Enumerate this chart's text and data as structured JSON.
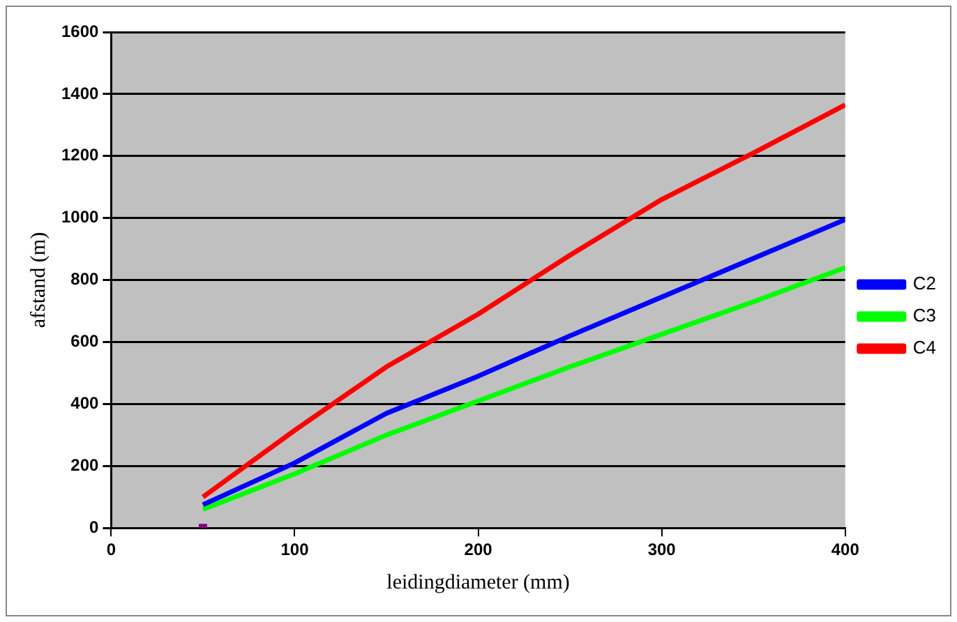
{
  "chart_data": {
    "type": "line",
    "xlabel": "leidingdiameter (mm)",
    "ylabel": "afstand (m)",
    "x": [
      50,
      100,
      150,
      200,
      250,
      300,
      350,
      400
    ],
    "series": [
      {
        "name": "C2",
        "color": "#0000ff",
        "values": [
          75,
          210,
          370,
          490,
          620,
          745,
          870,
          995
        ]
      },
      {
        "name": "C3",
        "color": "#00ff00",
        "values": [
          60,
          175,
          300,
          410,
          520,
          625,
          730,
          840
        ]
      },
      {
        "name": "C4",
        "color": "#ff0000",
        "values": [
          100,
          315,
          520,
          690,
          880,
          1060,
          1210,
          1365
        ]
      },
      {
        "type": "scatter",
        "color": "#800080",
        "x": [
          50
        ],
        "values": [
          0
        ],
        "marker": "square"
      }
    ],
    "xlim": [
      0,
      400
    ],
    "xticks": [
      0,
      100,
      200,
      300,
      400
    ],
    "ylim": [
      0,
      1600
    ],
    "yticks": [
      0,
      200,
      400,
      600,
      800,
      1000,
      1200,
      1400,
      1600
    ],
    "grid": "y",
    "legend": "right",
    "marker": "none",
    "line_style": "solid"
  }
}
